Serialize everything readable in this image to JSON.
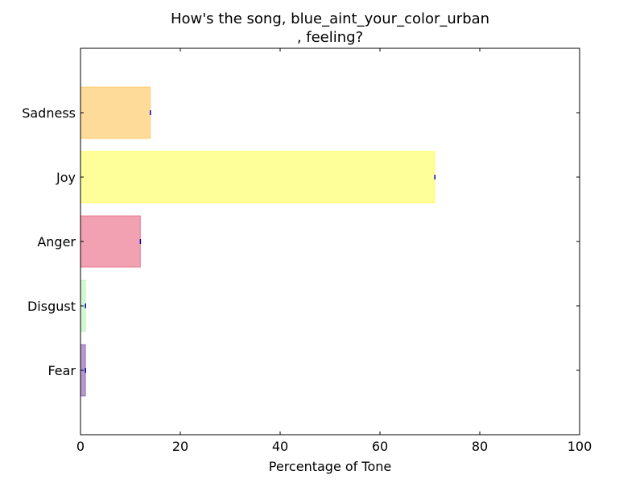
{
  "chart_data": {
    "type": "bar",
    "orientation": "horizontal",
    "title_lines": [
      "How's the song, blue_aint_your_color_urban",
      ", feeling?"
    ],
    "xlabel": "Percentage of Tone",
    "ylabel": "",
    "xlim": [
      0,
      100
    ],
    "x_ticks": [
      "0",
      "20",
      "40",
      "60",
      "80",
      "100"
    ],
    "categories": [
      "Sadness",
      "Joy",
      "Anger",
      "Disgust",
      "Fear"
    ],
    "values": [
      14,
      71,
      12,
      1,
      1
    ],
    "colors": [
      "#ffa500",
      "#ffff00",
      "#dc143c",
      "#90ee90",
      "#4b0082"
    ],
    "edge_colors": [
      "#ffa500",
      "#ffff00",
      "#dc143c",
      "#90ee90",
      "#4b0082"
    ],
    "bar_alpha": 0.4,
    "error_marker_color": "#0000cc",
    "grid": false,
    "legend": "none"
  }
}
